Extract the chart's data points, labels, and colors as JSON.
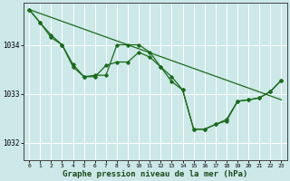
{
  "background_color": "#cce8e8",
  "grid_color": "#ffffff",
  "line_color": "#1a6b1a",
  "marker_color": "#1a6b1a",
  "xlabel": "Graphe pression niveau de la mer (hPa)",
  "xlabel_fontsize": 6.5,
  "ylabel_ticks": [
    1032,
    1033,
    1034
  ],
  "xlim": [
    -0.5,
    23.5
  ],
  "ylim": [
    1031.65,
    1034.85
  ],
  "xticks": [
    0,
    1,
    2,
    3,
    4,
    5,
    6,
    7,
    8,
    9,
    10,
    11,
    12,
    13,
    14,
    15,
    16,
    17,
    18,
    19,
    20,
    21,
    22,
    23
  ],
  "series": [
    {
      "x": [
        0,
        23
      ],
      "y": [
        1034.72,
        1032.88
      ],
      "marker": false,
      "linewidth": 0.9
    },
    {
      "x": [
        0,
        1,
        2,
        3,
        4,
        5,
        6,
        7,
        8,
        9,
        10,
        11,
        12,
        13,
        14,
        15,
        16,
        17,
        18,
        19,
        20,
        21,
        22,
        23
      ],
      "y": [
        1034.72,
        1034.45,
        1034.2,
        1034.0,
        1033.6,
        1033.35,
        1033.38,
        1033.38,
        1034.0,
        1034.0,
        1034.0,
        1033.85,
        1033.55,
        1033.25,
        1033.08,
        1032.28,
        1032.28,
        1032.38,
        1032.45,
        1032.85,
        1032.88,
        1032.92,
        1033.05,
        1033.28
      ],
      "marker": true,
      "linewidth": 0.9
    },
    {
      "x": [
        0,
        1,
        2,
        3,
        4,
        5,
        6,
        7,
        8,
        9,
        10,
        11,
        12,
        13,
        14,
        15,
        16,
        17,
        18,
        19,
        20,
        21,
        22,
        23
      ],
      "y": [
        1034.72,
        1034.45,
        1034.15,
        1034.0,
        1033.55,
        1033.35,
        1033.35,
        1033.58,
        1033.65,
        1033.65,
        1033.85,
        1033.75,
        1033.55,
        1033.35,
        1033.08,
        1032.28,
        1032.28,
        1032.38,
        1032.48,
        1032.85,
        1032.88,
        1032.92,
        1033.05,
        1033.28
      ],
      "marker": true,
      "linewidth": 0.9
    }
  ]
}
